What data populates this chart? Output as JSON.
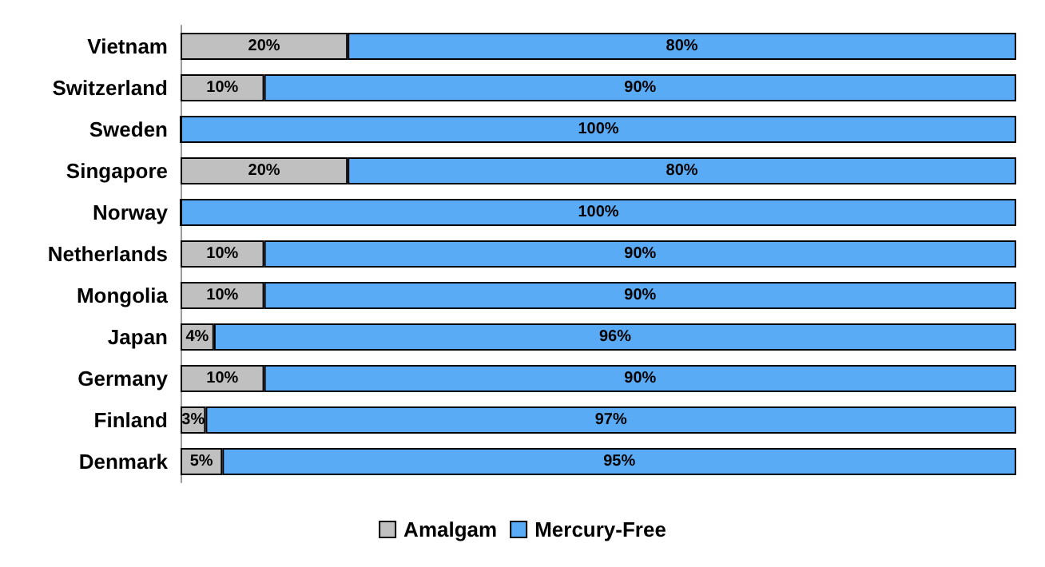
{
  "chart_data": {
    "type": "bar",
    "orientation": "horizontal",
    "stacked": true,
    "legend": "bottom",
    "categories": [
      "Vietnam",
      "Switzerland",
      "Sweden",
      "Singapore",
      "Norway",
      "Netherlands",
      "Mongolia",
      "Japan",
      "Germany",
      "Finland",
      "Denmark"
    ],
    "series": [
      {
        "name": "Amalgam",
        "color": "#c0c0c0",
        "values": [
          20,
          10,
          0,
          20,
          0,
          10,
          10,
          4,
          10,
          3,
          5
        ],
        "value_labels": [
          "20%",
          "10%",
          null,
          "20%",
          null,
          "10%",
          "10%",
          "4%",
          "10%",
          "3%",
          "5%"
        ]
      },
      {
        "name": "Mercury-Free",
        "color": "#5aabf5",
        "values": [
          80,
          90,
          100,
          80,
          100,
          90,
          90,
          96,
          90,
          97,
          95
        ],
        "value_labels": [
          "80%",
          "90%",
          "100%",
          "80%",
          "100%",
          "90%",
          "90%",
          "96%",
          "90%",
          "97%",
          "95%"
        ]
      }
    ]
  }
}
